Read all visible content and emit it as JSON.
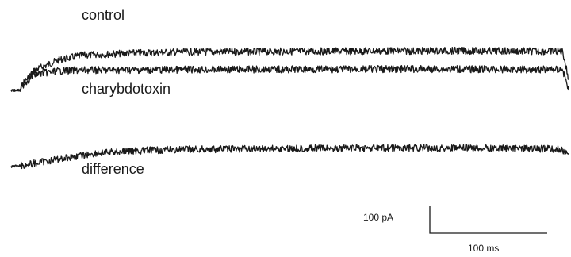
{
  "chart_data": {
    "type": "line",
    "title": "",
    "xlabel": "",
    "ylabel": "",
    "series": [
      {
        "name": "control",
        "x_ms": [
          0,
          8,
          10,
          20,
          40,
          60,
          100,
          140,
          200,
          260,
          320,
          380,
          420,
          470,
          475
        ],
        "y_pA": [
          0,
          0,
          25,
          75,
          112,
          130,
          138,
          142,
          144,
          145,
          146,
          147,
          146,
          145,
          40
        ]
      },
      {
        "name": "charybdotoxin",
        "x_ms": [
          0,
          8,
          10,
          20,
          40,
          60,
          100,
          140,
          200,
          260,
          320,
          380,
          420,
          470,
          475
        ],
        "y_pA": [
          0,
          0,
          20,
          60,
          72,
          75,
          76,
          77,
          78,
          78,
          79,
          79,
          78,
          78,
          0
        ]
      },
      {
        "name": "difference",
        "x_ms": [
          0,
          15,
          40,
          70,
          100,
          140,
          200,
          260,
          320,
          380,
          420,
          460,
          470,
          475
        ],
        "y_pA": [
          0,
          8,
          28,
          48,
          58,
          63,
          66,
          68,
          69,
          69,
          68,
          66,
          62,
          45
        ]
      }
    ],
    "annotations": [
      "control",
      "charybdotoxin",
      "difference"
    ],
    "scale_bar": {
      "current_label": "100 pA",
      "time_label": "100 ms"
    },
    "grid": false,
    "axes_visible": false,
    "trace_color": "#1a1a1a"
  }
}
